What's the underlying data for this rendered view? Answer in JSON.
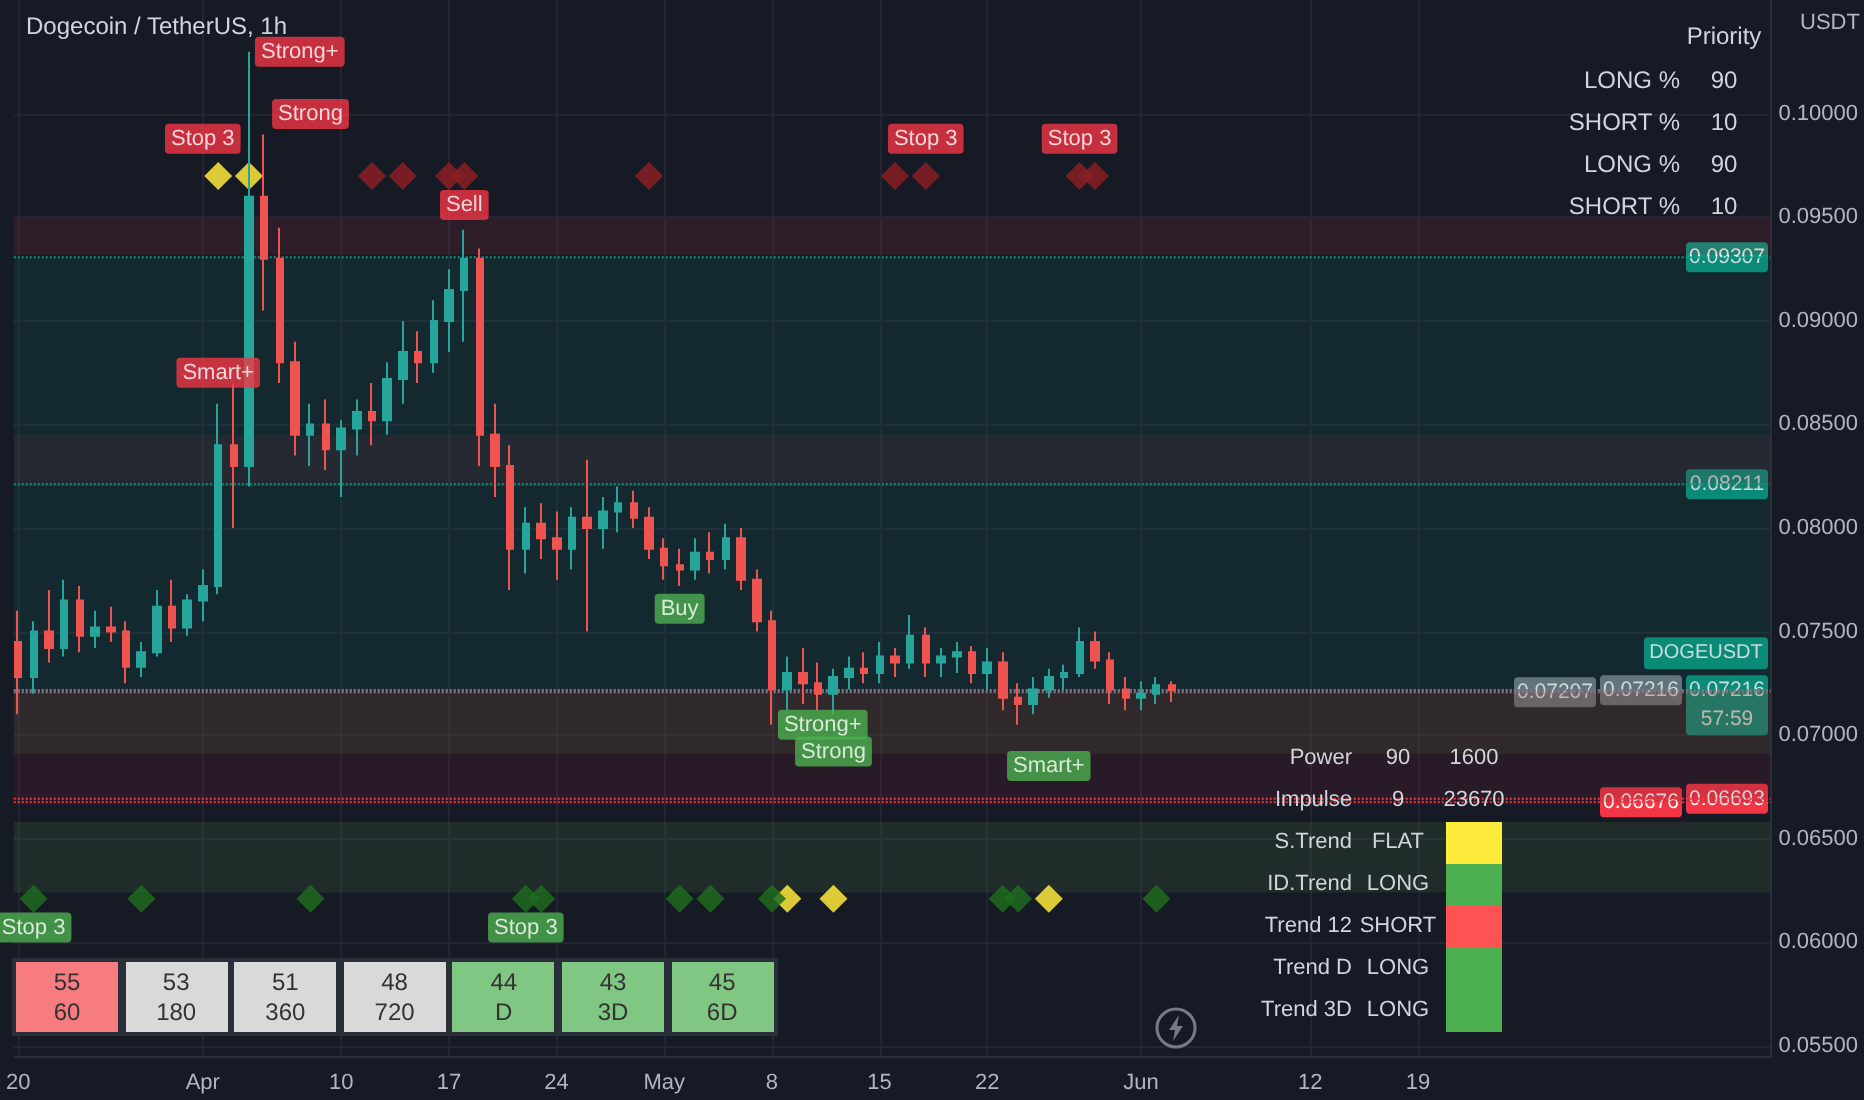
{
  "chart_data": {
    "type": "candlestick",
    "title": "Dogecoin / TetherUS, 1h",
    "ylabel": "USDT",
    "xlim": [
      "--03-19T17:00",
      "--07-11T22:00"
    ],
    "xticks": [
      {
        "value": "--03-20",
        "label": "20"
      },
      {
        "value": "--04-01",
        "label": "Apr"
      },
      {
        "value": "--04-10",
        "label": "10"
      },
      {
        "value": "--04-17",
        "label": "17"
      },
      {
        "value": "--04-24",
        "label": "24"
      },
      {
        "value": "--05-01",
        "label": "May"
      },
      {
        "value": "--05-08",
        "label": "8"
      },
      {
        "value": "--05-15",
        "label": "15"
      },
      {
        "value": "--05-22",
        "label": "22"
      },
      {
        "value": "--06-01",
        "label": "Jun"
      },
      {
        "value": "--06-12",
        "label": "12"
      },
      {
        "value": "--06-19",
        "label": "19"
      }
    ],
    "ylim": [
      0.0545,
      0.1055
    ],
    "yticks": [
      {
        "value": 0.055,
        "label": "0.05500"
      },
      {
        "value": 0.06,
        "label": "0.06000"
      },
      {
        "value": 0.065,
        "label": "0.06500"
      },
      {
        "value": 0.07,
        "label": "0.07000"
      },
      {
        "value": 0.075,
        "label": "0.07500"
      },
      {
        "value": 0.08,
        "label": "0.08000"
      },
      {
        "value": 0.085,
        "label": "0.08500"
      },
      {
        "value": 0.09,
        "label": "0.09000"
      },
      {
        "value": 0.095,
        "label": "0.09500"
      },
      {
        "value": 0.1,
        "label": "0.10000"
      }
    ],
    "grid": true,
    "series": [
      {
        "x": [
          "--03-20",
          "--03-21",
          "--03-22",
          "--03-23",
          "--03-24",
          "--03-25",
          "--03-26",
          "--03-27",
          "--03-28",
          "--03-29",
          "--03-30",
          "--03-31",
          "--04-01",
          "--04-02",
          "--04-03",
          "--04-04",
          "--04-05",
          "--04-06",
          "--04-07",
          "--04-08",
          "--04-09",
          "--04-10",
          "--04-11",
          "--04-12",
          "--04-13",
          "--04-14",
          "--04-15",
          "--04-16",
          "--04-17",
          "--04-18",
          "--04-19",
          "--04-20",
          "--04-21",
          "--04-22",
          "--04-23",
          "--04-24",
          "--04-25",
          "--04-26",
          "--04-27",
          "--04-28",
          "--04-29",
          "--04-30",
          "--05-01",
          "--05-02",
          "--05-03",
          "--05-04",
          "--05-05",
          "--05-06",
          "--05-07",
          "--05-08",
          "--05-09",
          "--05-10",
          "--05-11",
          "--05-12",
          "--05-13",
          "--05-14",
          "--05-15",
          "--05-16",
          "--05-17",
          "--05-18",
          "--05-19",
          "--05-20",
          "--05-21",
          "--05-22",
          "--05-23",
          "--05-24",
          "--05-25",
          "--05-26",
          "--05-27",
          "--05-28",
          "--05-29",
          "--05-30",
          "--05-31",
          "--06-01",
          "--06-02",
          "--06-03"
        ],
        "ohlc": [
          [
            0.0745,
            0.076,
            0.071,
            0.0728
          ],
          [
            0.0728,
            0.0755,
            0.072,
            0.075
          ],
          [
            0.075,
            0.077,
            0.0735,
            0.0742
          ],
          [
            0.0742,
            0.0775,
            0.0738,
            0.0765
          ],
          [
            0.0765,
            0.0772,
            0.074,
            0.0748
          ],
          [
            0.0748,
            0.076,
            0.0742,
            0.0752
          ],
          [
            0.0752,
            0.0762,
            0.0745,
            0.075
          ],
          [
            0.075,
            0.0755,
            0.0725,
            0.0733
          ],
          [
            0.0733,
            0.0745,
            0.0728,
            0.074
          ],
          [
            0.074,
            0.077,
            0.0738,
            0.0762
          ],
          [
            0.0762,
            0.0775,
            0.0745,
            0.0752
          ],
          [
            0.0752,
            0.0768,
            0.0748,
            0.0765
          ],
          [
            0.0765,
            0.078,
            0.0755,
            0.0772
          ],
          [
            0.0772,
            0.086,
            0.0768,
            0.084
          ],
          [
            0.084,
            0.087,
            0.08,
            0.083
          ],
          [
            0.083,
            0.103,
            0.082,
            0.096
          ],
          [
            0.096,
            0.099,
            0.0905,
            0.093
          ],
          [
            0.093,
            0.0945,
            0.087,
            0.088
          ],
          [
            0.088,
            0.089,
            0.0835,
            0.0845
          ],
          [
            0.0845,
            0.086,
            0.083,
            0.085
          ],
          [
            0.085,
            0.0862,
            0.0828,
            0.0838
          ],
          [
            0.0838,
            0.0852,
            0.0815,
            0.0848
          ],
          [
            0.0848,
            0.0862,
            0.0835,
            0.0856
          ],
          [
            0.0856,
            0.087,
            0.084,
            0.0852
          ],
          [
            0.0852,
            0.088,
            0.0845,
            0.0872
          ],
          [
            0.0872,
            0.09,
            0.086,
            0.0885
          ],
          [
            0.0885,
            0.0895,
            0.087,
            0.088
          ],
          [
            0.088,
            0.091,
            0.0875,
            0.09
          ],
          [
            0.09,
            0.0925,
            0.0885,
            0.0915
          ],
          [
            0.0915,
            0.0944,
            0.089,
            0.093
          ],
          [
            0.093,
            0.0935,
            0.083,
            0.0845
          ],
          [
            0.0845,
            0.086,
            0.0815,
            0.083
          ],
          [
            0.083,
            0.084,
            0.077,
            0.079
          ],
          [
            0.079,
            0.081,
            0.0778,
            0.0802
          ],
          [
            0.0802,
            0.0812,
            0.0785,
            0.0795
          ],
          [
            0.0795,
            0.0808,
            0.0775,
            0.079
          ],
          [
            0.079,
            0.081,
            0.078,
            0.0805
          ],
          [
            0.0805,
            0.0833,
            0.075,
            0.08
          ],
          [
            0.08,
            0.0815,
            0.079,
            0.0808
          ],
          [
            0.0808,
            0.082,
            0.0798,
            0.0812
          ],
          [
            0.0812,
            0.0818,
            0.08,
            0.0805
          ],
          [
            0.0805,
            0.081,
            0.0785,
            0.079
          ],
          [
            0.079,
            0.0795,
            0.0775,
            0.0782
          ],
          [
            0.0782,
            0.079,
            0.0772,
            0.078
          ],
          [
            0.078,
            0.0795,
            0.0775,
            0.0788
          ],
          [
            0.0788,
            0.0798,
            0.0778,
            0.0785
          ],
          [
            0.0785,
            0.0802,
            0.078,
            0.0795
          ],
          [
            0.0795,
            0.08,
            0.077,
            0.0775
          ],
          [
            0.0775,
            0.078,
            0.075,
            0.0755
          ],
          [
            0.0755,
            0.076,
            0.0705,
            0.0722
          ],
          [
            0.0722,
            0.0738,
            0.0712,
            0.073
          ],
          [
            0.073,
            0.0742,
            0.0715,
            0.0725
          ],
          [
            0.0725,
            0.0735,
            0.0712,
            0.072
          ],
          [
            0.072,
            0.0732,
            0.071,
            0.0728
          ],
          [
            0.0728,
            0.0738,
            0.0722,
            0.0732
          ],
          [
            0.0732,
            0.074,
            0.0725,
            0.073
          ],
          [
            0.073,
            0.0745,
            0.0725,
            0.0738
          ],
          [
            0.0738,
            0.0742,
            0.0728,
            0.0735
          ],
          [
            0.0735,
            0.0758,
            0.0732,
            0.0748
          ],
          [
            0.0748,
            0.0752,
            0.0728,
            0.0735
          ],
          [
            0.0735,
            0.0742,
            0.0728,
            0.0738
          ],
          [
            0.0738,
            0.0745,
            0.073,
            0.074
          ],
          [
            0.074,
            0.0743,
            0.0725,
            0.073
          ],
          [
            0.073,
            0.0742,
            0.0722,
            0.0735
          ],
          [
            0.0735,
            0.074,
            0.0712,
            0.0718
          ],
          [
            0.0718,
            0.0725,
            0.0705,
            0.0715
          ],
          [
            0.0715,
            0.0728,
            0.071,
            0.0722
          ],
          [
            0.0722,
            0.0732,
            0.0718,
            0.0728
          ],
          [
            0.0728,
            0.0734,
            0.0722,
            0.073
          ],
          [
            0.073,
            0.0752,
            0.0728,
            0.0745
          ],
          [
            0.0745,
            0.075,
            0.0732,
            0.0736
          ],
          [
            0.0736,
            0.074,
            0.0715,
            0.0722
          ],
          [
            0.0722,
            0.0728,
            0.0712,
            0.0718
          ],
          [
            0.0718,
            0.0726,
            0.0712,
            0.072
          ],
          [
            0.072,
            0.0728,
            0.0715,
            0.0724
          ],
          [
            0.0724,
            0.0726,
            0.0716,
            0.07216
          ]
        ],
        "colors": [
          "#ef5350",
          "#26a69a",
          "#ef5350",
          "#26a69a",
          "#ef5350",
          "#26a69a",
          "#ef5350",
          "#ef5350",
          "#26a69a",
          "#26a69a",
          "#ef5350",
          "#26a69a",
          "#26a69a",
          "#26a69a",
          "#ef5350",
          "#26a69a",
          "#ef5350",
          "#ef5350",
          "#ef5350",
          "#26a69a",
          "#ef5350",
          "#26a69a",
          "#26a69a",
          "#ef5350",
          "#26a69a",
          "#26a69a",
          "#ef5350",
          "#26a69a",
          "#26a69a",
          "#26a69a",
          "#ef5350",
          "#ef5350",
          "#ef5350",
          "#26a69a",
          "#ef5350",
          "#ef5350",
          "#26a69a",
          "#ef5350",
          "#26a69a",
          "#26a69a",
          "#ef5350",
          "#ef5350",
          "#ef5350",
          "#ef5350",
          "#26a69a",
          "#ef5350",
          "#26a69a",
          "#ef5350",
          "#ef5350",
          "#ef5350",
          "#26a69a",
          "#ef5350",
          "#ef5350",
          "#26a69a",
          "#26a69a",
          "#ef5350",
          "#26a69a",
          "#ef5350",
          "#26a69a",
          "#ef5350",
          "#26a69a",
          "#26a69a",
          "#ef5350",
          "#26a69a",
          "#ef5350",
          "#ef5350",
          "#26a69a",
          "#26a69a",
          "#26a69a",
          "#26a69a",
          "#ef5350",
          "#ef5350",
          "#ef5350",
          "#26a69a",
          "#26a69a",
          "#ef5350"
        ]
      },
      {
        "type": "scatter",
        "marker": "diamond",
        "color": "#8b1e24",
        "x": [
          "--04-12",
          "--04-14",
          "--04-17",
          "--04-18",
          "--04-30",
          "--05-16",
          "--05-18",
          "--05-28",
          "--05-29"
        ],
        "values": [
          0.097,
          0.097,
          0.097,
          0.097,
          0.097,
          0.097,
          0.097,
          0.097,
          0.097
        ]
      },
      {
        "type": "scatter",
        "marker": "diamond",
        "color": "#ffeb3b",
        "x": [
          "--04-02",
          "--04-04",
          "--05-09",
          "--05-12",
          "--05-26"
        ],
        "values": [
          0.097,
          0.097,
          0.0621,
          0.0621,
          0.0621
        ]
      },
      {
        "type": "scatter",
        "marker": "diamond",
        "color": "#1e6b1e",
        "x": [
          "--03-21",
          "--03-28",
          "--04-08",
          "--04-22",
          "--04-23",
          "--05-02",
          "--05-04",
          "--05-08",
          "--05-23",
          "--05-24",
          "--06-02"
        ],
        "values": [
          0.0621,
          0.0621,
          0.0621,
          0.0621,
          0.0621,
          0.0621,
          0.0621,
          0.0621,
          0.0621,
          0.0621,
          0.0621
        ]
      }
    ],
    "ref_lines": [
      {
        "axis": "y",
        "value": 0.09307,
        "label": "0.09307",
        "color": "#089981",
        "line_style": "dotted"
      },
      {
        "axis": "y",
        "value": 0.08211,
        "label": "0.08211",
        "color": "#089981",
        "line_style": "dotted"
      },
      {
        "axis": "y",
        "value": 0.07216,
        "label": "0.07216",
        "color": "#089981",
        "line_style": "dotted"
      },
      {
        "axis": "y",
        "value": 0.07216,
        "label": "0.07216",
        "color": "#787b86",
        "line_style": "dotted"
      },
      {
        "axis": "y",
        "value": 0.07207,
        "label": "0.07207",
        "color": "#787b86",
        "line_style": "dotted"
      },
      {
        "axis": "y",
        "value": 0.06693,
        "label": "0.06693",
        "color": "#f23645",
        "line_style": "dotted"
      },
      {
        "axis": "y",
        "value": 0.06676,
        "label": "0.06676",
        "color": "#f23645",
        "line_style": "dotted"
      }
    ],
    "bands": [
      {
        "axis": "y",
        "from": 0.0932,
        "to": 0.095,
        "color": "#7a2a36"
      },
      {
        "axis": "y",
        "from": 0.082,
        "to": 0.0845,
        "color": "#7a2a36"
      },
      {
        "axis": "y",
        "from": 0.0691,
        "to": 0.0721,
        "color": "#3f6e3a"
      },
      {
        "axis": "y",
        "from": 0.0624,
        "to": 0.0658,
        "color": "#3f6e3a"
      },
      {
        "axis": "y",
        "from": 0.07216,
        "to": 0.09307,
        "color": "#0e5a55"
      },
      {
        "axis": "y",
        "from": 0.06676,
        "to": 0.07216,
        "color": "#6a2030"
      }
    ],
    "annotations": [
      "Priority",
      "LONG %",
      "90",
      "SHORT %",
      "10",
      "LONG %",
      "90",
      "SHORT %",
      "10",
      "Power",
      "90",
      "1600",
      "Impulse",
      "9",
      "23670",
      "S.Trend",
      "FLAT",
      "ID.Trend",
      "LONG",
      "Trend 12",
      "SHORT",
      "Trend D",
      "LONG",
      "Trend 3D",
      "LONG",
      "55",
      "60",
      "53",
      "180",
      "51",
      "360",
      "48",
      "720",
      "44",
      "D",
      "43",
      "3D",
      "45",
      "6D",
      "DOGEUSDT",
      "57:59",
      {
        "text": "Strong+",
        "x": "--04-04",
        "y": 0.103
      },
      {
        "text": "Strong",
        "x": "--04-08",
        "y": 0.1
      },
      {
        "text": "Stop 3",
        "x": "--04-01",
        "y": 0.0988
      },
      {
        "text": "Stop 3",
        "x": "--05-18",
        "y": 0.0988
      },
      {
        "text": "Stop 3",
        "x": "--05-28",
        "y": 0.0988
      },
      {
        "text": "Sell",
        "x": "--04-18",
        "y": 0.0956
      },
      {
        "text": "Smart+",
        "x": "--04-02",
        "y": 0.0875
      },
      {
        "text": "Buy",
        "x": "--05-02",
        "y": 0.0761
      },
      {
        "text": "Strong+",
        "x": "--05-08",
        "y": 0.0705
      },
      {
        "text": "Strong",
        "x": "--05-12",
        "y": 0.0692
      },
      {
        "text": "Smart+",
        "x": "--05-26",
        "y": 0.0685
      },
      {
        "text": "Stop 3",
        "x": "--03-21",
        "y": 0.0607
      },
      {
        "text": "Stop 3",
        "x": "--04-22",
        "y": 0.0607
      }
    ]
  }
}
